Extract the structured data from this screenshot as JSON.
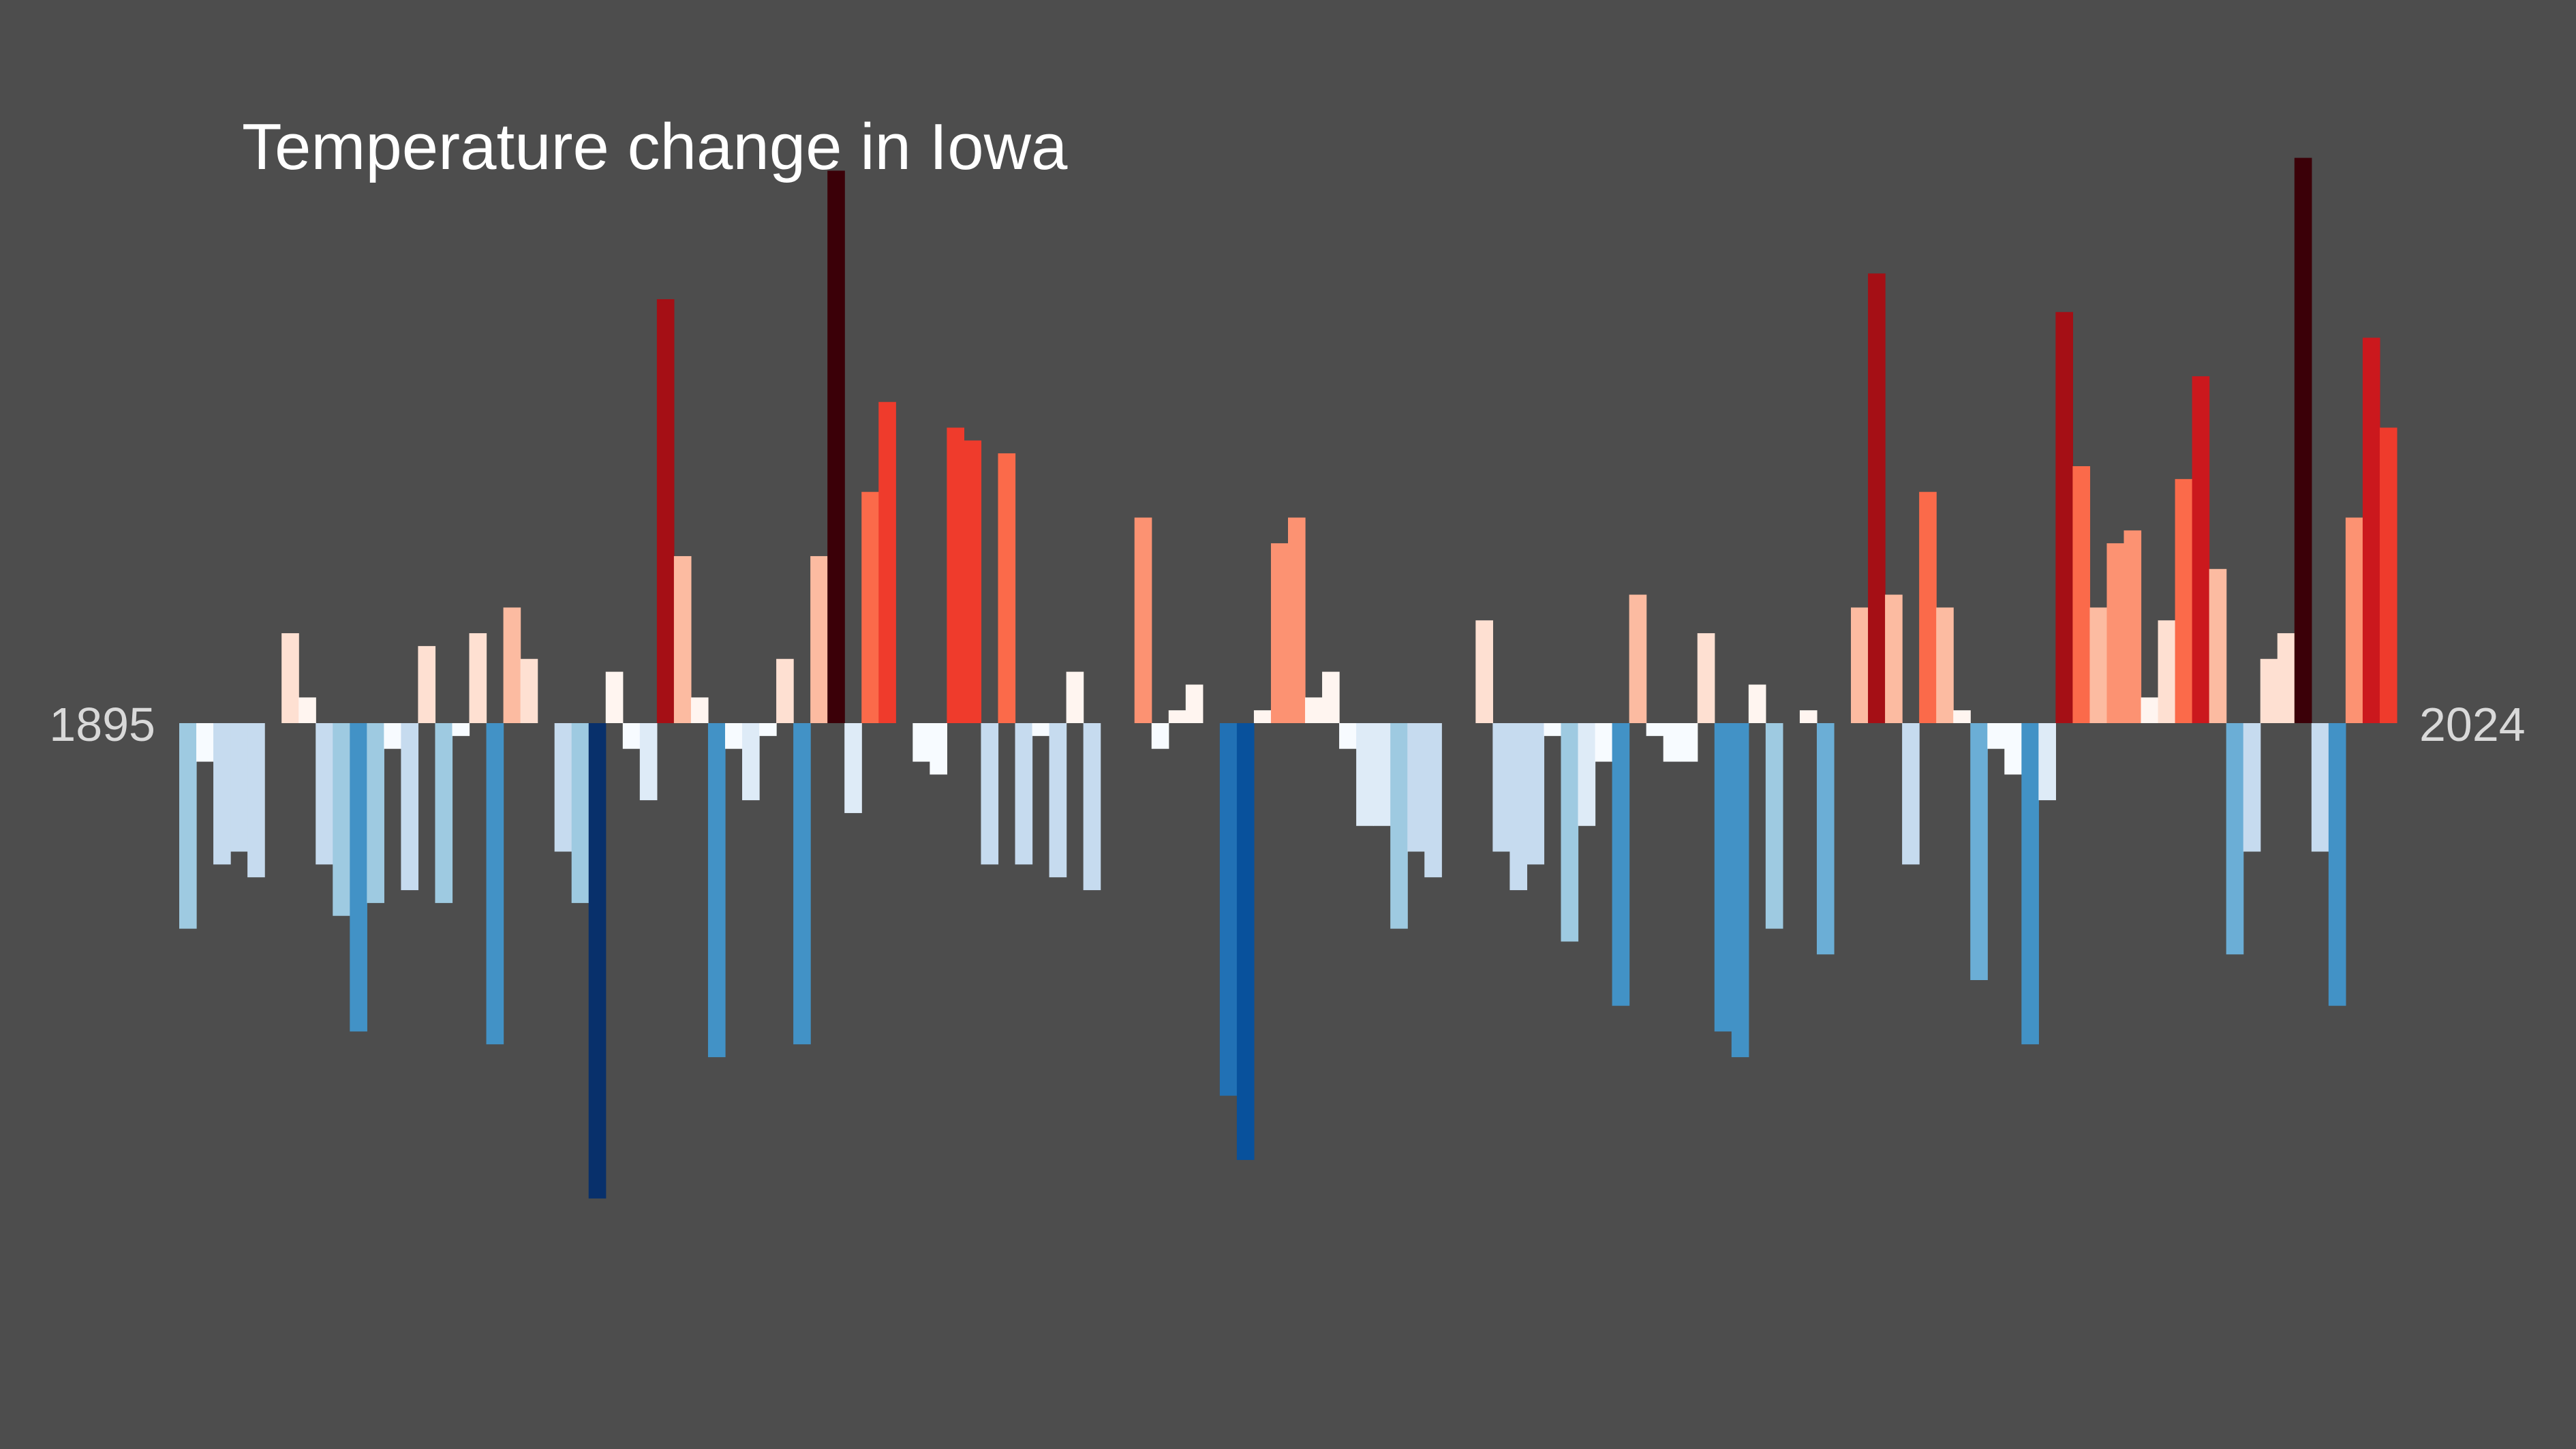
{
  "chart_data": {
    "type": "bar",
    "title": "Temperature change in Iowa",
    "xlabel": "",
    "ylabel": "",
    "start_label": "1895",
    "end_label": "2024",
    "x_start": 1895,
    "x_end": 2024,
    "ylim": [
      -2.4,
      2.6
    ],
    "zero_line": 0,
    "grid": false,
    "legend": "none",
    "color_scale": {
      "cold": [
        "#f7fbff",
        "#deebf7",
        "#c6dbef",
        "#9ecae1",
        "#6baed6",
        "#4292c6",
        "#2171b5",
        "#08519c",
        "#08306b"
      ],
      "warm": [
        "#fff5f0",
        "#fee0d2",
        "#fcbba1",
        "#fc9272",
        "#fb6a4a",
        "#ef3b2c",
        "#cb181d",
        "#a50f15",
        "#67000d",
        "#3b0008"
      ]
    },
    "values": [
      -0.8,
      -0.15,
      -0.55,
      -0.5,
      -0.6,
      0.0,
      0.35,
      0.1,
      -0.55,
      -0.75,
      -1.2,
      -0.7,
      -0.1,
      -0.65,
      0.3,
      -0.7,
      -0.05,
      0.35,
      -1.25,
      0.45,
      0.25,
      0.0,
      -0.5,
      -0.7,
      -1.85,
      0.2,
      -0.1,
      -0.3,
      1.65,
      0.65,
      0.1,
      -1.3,
      -0.1,
      -0.3,
      -0.05,
      0.25,
      -1.25,
      0.65,
      2.15,
      -0.35,
      0.9,
      1.25,
      0.0,
      -0.15,
      -0.2,
      1.15,
      1.1,
      -0.55,
      1.05,
      -0.55,
      -0.05,
      -0.6,
      0.2,
      -0.65,
      0.0,
      0.0,
      0.8,
      -0.1,
      0.05,
      0.15,
      0.0,
      -1.45,
      -1.7,
      0.05,
      0.7,
      0.8,
      0.1,
      0.2,
      -0.1,
      -0.4,
      -0.4,
      -0.8,
      -0.5,
      -0.6,
      0.0,
      0.0,
      0.4,
      -0.5,
      -0.65,
      -0.55,
      -0.05,
      -0.85,
      -0.4,
      -0.15,
      -1.1,
      0.5,
      -0.05,
      -0.15,
      -0.15,
      0.35,
      -1.2,
      -1.3,
      0.15,
      -0.8,
      0.0,
      0.05,
      -0.9,
      0.0,
      0.45,
      1.75,
      0.5,
      -0.55,
      0.9,
      0.45,
      0.05,
      -1.0,
      -0.1,
      -0.2,
      -1.25,
      -0.3,
      1.6,
      1.0,
      0.45,
      0.7,
      0.75,
      0.1,
      0.4,
      0.95,
      1.35,
      0.6,
      -0.9,
      -0.5,
      0.25,
      0.35,
      2.2,
      -0.5,
      -1.1,
      0.8,
      1.5,
      1.15
    ]
  }
}
